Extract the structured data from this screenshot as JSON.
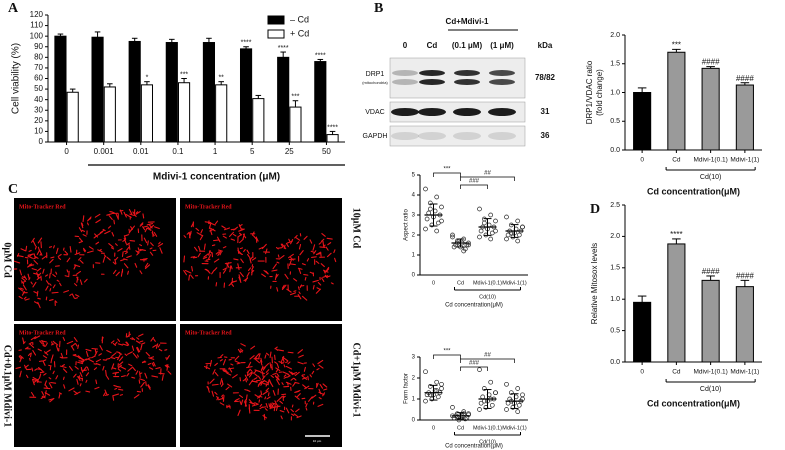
{
  "panel_labels": [
    "A",
    "B",
    "C",
    "D"
  ],
  "blot": {
    "header": "Cd+Mdivi-1",
    "lanes": [
      "0",
      "Cd",
      "(0.1 μM)",
      "(1 μM)"
    ],
    "kda": "kDa",
    "rows": [
      {
        "name": "DRP1",
        "sub": "(mitochondria)",
        "kda": "78/82"
      },
      {
        "name": "VDAC",
        "kda": "31"
      },
      {
        "name": "GAPDH",
        "kda": "36"
      }
    ]
  },
  "micrographs": {
    "stain": [
      "Mito-Tracker Red",
      "Mito-Tracker Red",
      "Mito-Tracker Red",
      "Mito-Tracker Red"
    ],
    "left_labels": [
      "0μM Cd",
      "Cd+0.1μM Mdivi-1"
    ],
    "right_labels": [
      "10μM Cd",
      "Cd+1μM Mdivi-1"
    ],
    "scale_bar": "10 μm"
  },
  "chart_data": [
    {
      "type": "bar",
      "ylabel": "Cell viability (%)",
      "xlabel": "Mdivi-1 concentration (μM)",
      "categories": [
        "0",
        "0.001",
        "0.01",
        "0.1",
        "1",
        "5",
        "25",
        "50"
      ],
      "series": [
        {
          "name": "– Cd",
          "color": "#000000",
          "values": [
            100,
            99,
            95,
            94,
            94,
            88,
            80,
            76
          ],
          "errors": [
            2,
            5,
            3,
            3,
            4,
            2,
            5,
            2
          ],
          "significance": [
            null,
            null,
            null,
            null,
            null,
            "****",
            "****",
            "****"
          ]
        },
        {
          "name": "+ Cd",
          "color": "#ffffff",
          "values": [
            47,
            52,
            54,
            56,
            54,
            41,
            33,
            7
          ],
          "errors": [
            3,
            3,
            3,
            4,
            3,
            3,
            6,
            3
          ],
          "significance": [
            null,
            null,
            "*",
            "***",
            "**",
            null,
            "***",
            "****"
          ]
        }
      ],
      "ylim": [
        0,
        120
      ],
      "yticks": [
        0,
        10,
        20,
        30,
        40,
        50,
        60,
        70,
        80,
        90,
        100,
        110,
        120
      ],
      "legend": "upper right"
    },
    {
      "type": "bar",
      "ylabel": [
        "DRP1/VDAC ratio",
        "(fold change)"
      ],
      "xlabel": "Cd concentration(μM)",
      "group_label": "Cd(10)",
      "categories": [
        "0",
        "Cd",
        "Mdivi-1(0.1)",
        "Mdivi-1(1)"
      ],
      "values": [
        1.0,
        1.7,
        1.42,
        1.13
      ],
      "errors": [
        0.08,
        0.05,
        0.03,
        0.04
      ],
      "colors": [
        "#000000",
        "#9a9a9a",
        "#9a9a9a",
        "#9a9a9a"
      ],
      "significance": [
        null,
        "***",
        "####",
        "####"
      ],
      "ylim": [
        0,
        2
      ],
      "yticks": [
        {
          "value": 0,
          "label": "0.0"
        },
        0.5,
        {
          "value": 1,
          "label": "1.0"
        },
        1.5,
        {
          "value": 2,
          "label": "2.0"
        }
      ]
    },
    {
      "type": "strip",
      "ylabel": "Aspect ratio",
      "xlabel": "Cd concentration(μM)",
      "group_label": "Cd(10)",
      "categories": [
        "0",
        "Cd",
        "Mdivi-1(0.1)",
        "Mdivi-1(1)"
      ],
      "points": [
        [
          4.3,
          3.9,
          3.6,
          3.4,
          3.2,
          3.1,
          3.0,
          2.9,
          2.8,
          2.6,
          2.5,
          2.3,
          2.2,
          3.3,
          2.7
        ],
        [
          2.0,
          1.8,
          1.7,
          1.6,
          1.6,
          1.5,
          1.5,
          1.4,
          1.4,
          1.3,
          1.7,
          1.9,
          1.2,
          1.6,
          1.5
        ],
        [
          3.3,
          3.0,
          2.8,
          2.7,
          2.5,
          2.4,
          2.4,
          2.3,
          2.2,
          2.1,
          2.0,
          1.9,
          1.8,
          2.6,
          2.2
        ],
        [
          2.9,
          2.7,
          2.5,
          2.4,
          2.3,
          2.2,
          2.2,
          2.1,
          2.0,
          2.0,
          1.9,
          1.8,
          1.7,
          2.1,
          2.4
        ]
      ],
      "means": [
        3.0,
        1.6,
        2.4,
        2.2
      ],
      "sds": [
        0.55,
        0.2,
        0.42,
        0.32
      ],
      "comparisons": [
        "***",
        "###",
        "##"
      ],
      "ylim": [
        0,
        5
      ],
      "yticks": [
        0,
        1,
        2,
        3,
        4,
        5
      ]
    },
    {
      "type": "strip",
      "ylabel": "Form factor",
      "xlabel": "Cd concentration(μM)",
      "group_label": "Cd(10)",
      "categories": [
        "0",
        "Cd",
        "Mdivi-1(0.1)",
        "Mdivi-1(1)"
      ],
      "points": [
        [
          2.3,
          1.8,
          1.6,
          1.5,
          1.4,
          1.3,
          1.3,
          1.2,
          1.2,
          1.1,
          1.0,
          0.9,
          1.4,
          1.2,
          1.7
        ],
        [
          0.6,
          0.4,
          0.3,
          0.3,
          0.2,
          0.2,
          0.1,
          0.1,
          0.1,
          0.05,
          0.0,
          0.2,
          0.3,
          0.15,
          0.25
        ],
        [
          2.4,
          1.8,
          1.5,
          1.3,
          1.2,
          1.1,
          1.0,
          0.9,
          0.8,
          0.7,
          0.6,
          0.5,
          1.0,
          0.9,
          1.3
        ],
        [
          1.7,
          1.5,
          1.3,
          1.2,
          1.1,
          1.0,
          0.9,
          0.8,
          0.8,
          0.7,
          0.6,
          0.5,
          0.4,
          0.9,
          1.0
        ]
      ],
      "means": [
        1.3,
        0.2,
        1.0,
        0.9
      ],
      "sds": [
        0.35,
        0.15,
        0.45,
        0.35
      ],
      "comparisons": [
        "***",
        "###",
        "##"
      ],
      "ylim": [
        0,
        3
      ],
      "yticks": [
        0,
        1,
        2,
        3
      ]
    },
    {
      "type": "bar",
      "ylabel": "Relative Mitosox levels",
      "xlabel": "Cd concentration(μM)",
      "group_label": "Cd(10)",
      "categories": [
        "0",
        "Cd",
        "Mdivi-1(0.1)",
        "Mdivi-1(1)"
      ],
      "values": [
        0.95,
        1.88,
        1.3,
        1.2
      ],
      "errors": [
        0.1,
        0.08,
        0.07,
        0.1
      ],
      "colors": [
        "#000000",
        "#9a9a9a",
        "#9a9a9a",
        "#9a9a9a"
      ],
      "significance": [
        null,
        "****",
        "####",
        "####"
      ],
      "ylim": [
        0,
        2.5
      ],
      "yticks": [
        {
          "value": 0,
          "label": "0.0"
        },
        0.5,
        {
          "value": 1,
          "label": "1.0"
        },
        1.5,
        {
          "value": 2,
          "label": "2.0"
        },
        2.5
      ]
    }
  ]
}
